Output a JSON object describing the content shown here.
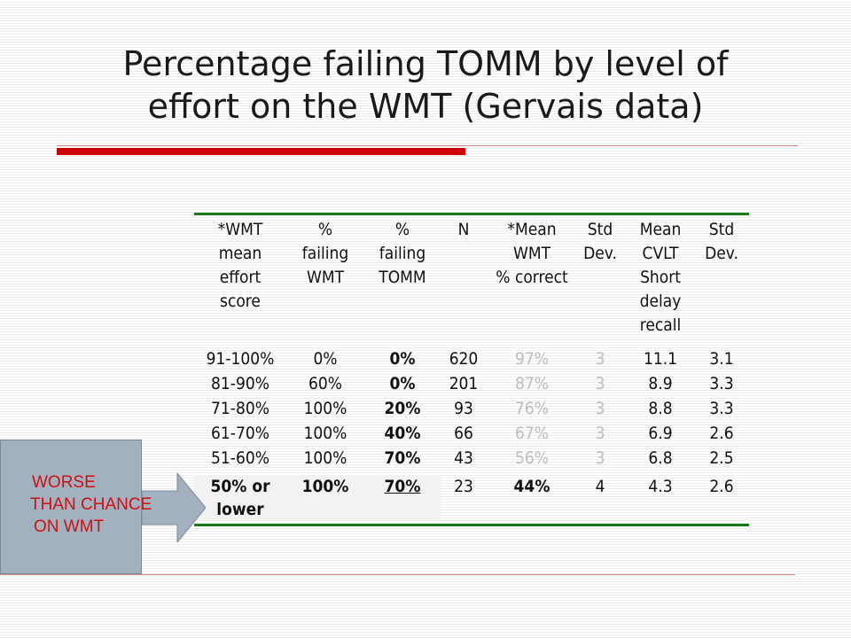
{
  "title": {
    "line1": "Percentage failing TOMM by level of",
    "line2": "effort on the WMT (Gervais data)"
  },
  "table": {
    "headers": [
      "*WMT\nmean\neffort\nscore",
      "%\nfailing\nWMT",
      "%\nfailing\nTOMM",
      "N",
      "*Mean\nWMT\n% correct",
      "Std\nDev.",
      "Mean\nCVLT\nShort\ndelay\nrecall",
      "Std\nDev."
    ],
    "rows": [
      [
        "91-100%",
        "0%",
        "0%",
        "620",
        "97%",
        "3",
        "11.1",
        "3.1"
      ],
      [
        "81-90%",
        "60%",
        "0%",
        "201",
        "87%",
        "3",
        "8.9",
        "3.3"
      ],
      [
        "71-80%",
        "100%",
        "20%",
        "93",
        "76%",
        "3",
        "8.8",
        "3.3"
      ],
      [
        "61-70%",
        "100%",
        "40%",
        "66",
        "67%",
        "3",
        "6.9",
        "2.6"
      ],
      [
        "51-60%",
        "100%",
        "70%",
        "43",
        "56%",
        "3",
        "6.8",
        "2.5"
      ],
      [
        "50% or\nlower",
        "100%",
        "70%",
        "23",
        "44%",
        "4",
        "4.3",
        "2.6"
      ]
    ]
  },
  "callout": {
    "line1": "WORSE",
    "line2": "THAN CHANCE",
    "line3": "ON WMT"
  },
  "colors": {
    "accent_red": "#cc0000",
    "table_rule_green": "#1a7a1a",
    "callout_fill": "#a3b0c0",
    "callout_text": "#cc1111"
  }
}
